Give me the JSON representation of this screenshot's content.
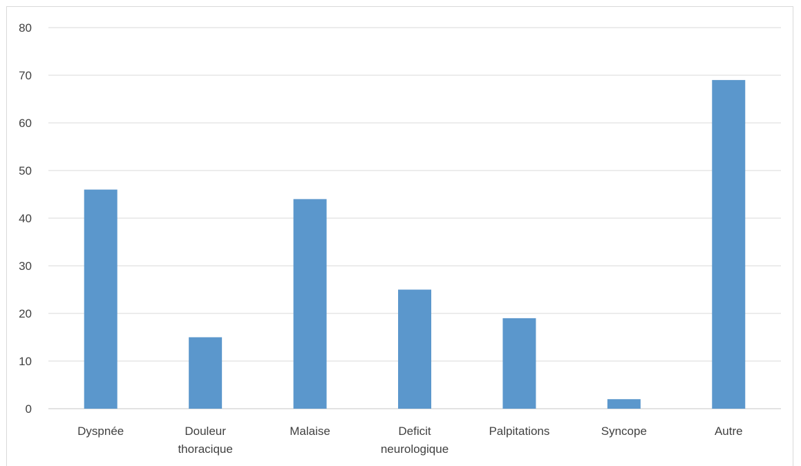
{
  "chart_data": {
    "type": "bar",
    "title": "",
    "xlabel": "",
    "ylabel": "",
    "categories": [
      [
        "Dyspnée"
      ],
      [
        "Douleur",
        "thoracique"
      ],
      [
        "Malaise"
      ],
      [
        "Deficit",
        "neurologique"
      ],
      [
        "Palpitations"
      ],
      [
        "Syncope"
      ],
      [
        "Autre"
      ]
    ],
    "values": [
      46,
      15,
      44,
      25,
      19,
      2,
      69
    ],
    "ylim": [
      0,
      80
    ],
    "yticks": [
      0,
      10,
      20,
      30,
      40,
      50,
      60,
      70,
      80
    ],
    "grid": true,
    "legend": "none",
    "colors": {
      "bar": "#5b97cc",
      "grid": "#d9d9d9",
      "text": "#404040"
    }
  }
}
